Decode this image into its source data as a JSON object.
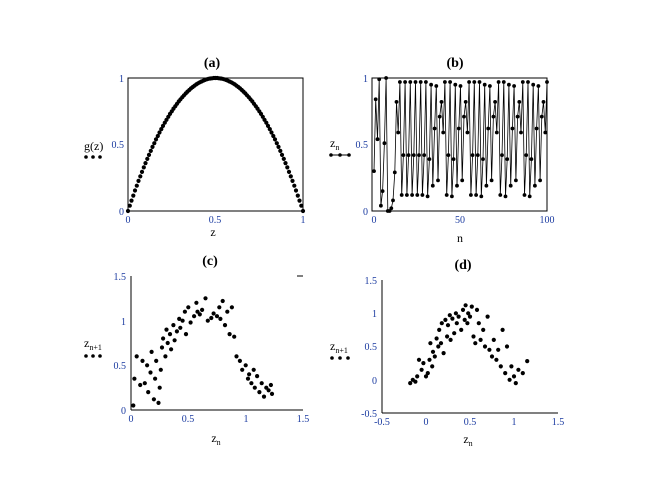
{
  "chart_data": [
    {
      "panel": "(a)",
      "type": "scatter",
      "title": "(a)",
      "xlabel": "z",
      "legend": {
        "name": "g(z)",
        "sub": ""
      },
      "xlim": [
        0,
        1
      ],
      "ylim": [
        0,
        1
      ],
      "xticks": [
        "0",
        "0.5",
        "1"
      ],
      "yticks": [
        "0",
        "0.5",
        "1"
      ],
      "grid": false,
      "connect": false,
      "points": [
        [
          0.0,
          0.0
        ],
        [
          0.01,
          0.04
        ],
        [
          0.02,
          0.078
        ],
        [
          0.03,
          0.116
        ],
        [
          0.04,
          0.154
        ],
        [
          0.05,
          0.19
        ],
        [
          0.06,
          0.226
        ],
        [
          0.07,
          0.26
        ],
        [
          0.08,
          0.294
        ],
        [
          0.09,
          0.328
        ],
        [
          0.1,
          0.36
        ],
        [
          0.11,
          0.392
        ],
        [
          0.12,
          0.422
        ],
        [
          0.13,
          0.452
        ],
        [
          0.14,
          0.482
        ],
        [
          0.15,
          0.51
        ],
        [
          0.16,
          0.538
        ],
        [
          0.17,
          0.564
        ],
        [
          0.18,
          0.59
        ],
        [
          0.19,
          0.616
        ],
        [
          0.2,
          0.64
        ],
        [
          0.21,
          0.664
        ],
        [
          0.22,
          0.686
        ],
        [
          0.23,
          0.708
        ],
        [
          0.24,
          0.73
        ],
        [
          0.25,
          0.75
        ],
        [
          0.26,
          0.77
        ],
        [
          0.27,
          0.788
        ],
        [
          0.28,
          0.806
        ],
        [
          0.29,
          0.824
        ],
        [
          0.3,
          0.84
        ],
        [
          0.31,
          0.856
        ],
        [
          0.32,
          0.87
        ],
        [
          0.33,
          0.884
        ],
        [
          0.34,
          0.898
        ],
        [
          0.35,
          0.91
        ],
        [
          0.36,
          0.922
        ],
        [
          0.37,
          0.932
        ],
        [
          0.38,
          0.942
        ],
        [
          0.39,
          0.952
        ],
        [
          0.4,
          0.96
        ],
        [
          0.41,
          0.968
        ],
        [
          0.42,
          0.974
        ],
        [
          0.43,
          0.98
        ],
        [
          0.44,
          0.986
        ],
        [
          0.45,
          0.99
        ],
        [
          0.46,
          0.994
        ],
        [
          0.47,
          0.996
        ],
        [
          0.48,
          0.998
        ],
        [
          0.49,
          1.0
        ],
        [
          0.5,
          1.0
        ],
        [
          0.51,
          1.0
        ],
        [
          0.52,
          0.998
        ],
        [
          0.53,
          0.996
        ],
        [
          0.54,
          0.994
        ],
        [
          0.55,
          0.99
        ],
        [
          0.56,
          0.986
        ],
        [
          0.57,
          0.98
        ],
        [
          0.58,
          0.974
        ],
        [
          0.59,
          0.968
        ],
        [
          0.6,
          0.96
        ],
        [
          0.61,
          0.952
        ],
        [
          0.62,
          0.942
        ],
        [
          0.63,
          0.932
        ],
        [
          0.64,
          0.922
        ],
        [
          0.65,
          0.91
        ],
        [
          0.66,
          0.898
        ],
        [
          0.67,
          0.884
        ],
        [
          0.68,
          0.87
        ],
        [
          0.69,
          0.856
        ],
        [
          0.7,
          0.84
        ],
        [
          0.71,
          0.824
        ],
        [
          0.72,
          0.806
        ],
        [
          0.73,
          0.788
        ],
        [
          0.74,
          0.77
        ],
        [
          0.75,
          0.75
        ],
        [
          0.76,
          0.73
        ],
        [
          0.77,
          0.708
        ],
        [
          0.78,
          0.686
        ],
        [
          0.79,
          0.664
        ],
        [
          0.8,
          0.64
        ],
        [
          0.81,
          0.616
        ],
        [
          0.82,
          0.59
        ],
        [
          0.83,
          0.564
        ],
        [
          0.84,
          0.538
        ],
        [
          0.85,
          0.51
        ],
        [
          0.86,
          0.482
        ],
        [
          0.87,
          0.452
        ],
        [
          0.88,
          0.422
        ],
        [
          0.89,
          0.392
        ],
        [
          0.9,
          0.36
        ],
        [
          0.91,
          0.328
        ],
        [
          0.92,
          0.294
        ],
        [
          0.93,
          0.26
        ],
        [
          0.94,
          0.226
        ],
        [
          0.95,
          0.19
        ],
        [
          0.96,
          0.154
        ],
        [
          0.97,
          0.116
        ],
        [
          0.98,
          0.078
        ],
        [
          0.99,
          0.04
        ],
        [
          1.0,
          0.0
        ]
      ]
    },
    {
      "panel": "(b)",
      "type": "line",
      "title": "(b)",
      "xlabel": "n",
      "legend": {
        "name": "z",
        "sub": "n"
      },
      "xlim": [
        0,
        100
      ],
      "ylim": [
        0,
        1
      ],
      "xticks": [
        "0",
        "50",
        "100"
      ],
      "yticks": [
        "0",
        "0.5",
        "1"
      ],
      "grid": false,
      "connect": true,
      "points": [
        [
          0,
          0.3
        ],
        [
          1,
          0.84
        ],
        [
          2,
          0.54
        ],
        [
          3,
          0.99
        ],
        [
          4,
          0.04
        ],
        [
          5,
          0.15
        ],
        [
          6,
          0.51
        ],
        [
          7,
          1.0
        ],
        [
          8,
          0.0
        ],
        [
          9,
          0.0
        ],
        [
          10,
          0.02
        ],
        [
          11,
          0.08
        ],
        [
          12,
          0.29
        ],
        [
          13,
          0.82
        ],
        [
          14,
          0.59
        ],
        [
          15,
          0.97
        ],
        [
          16,
          0.12
        ],
        [
          17,
          0.42
        ],
        [
          18,
          0.97
        ],
        [
          19,
          0.12
        ],
        [
          20,
          0.42
        ],
        [
          21,
          0.97
        ],
        [
          22,
          0.12
        ],
        [
          23,
          0.42
        ],
        [
          24,
          0.97
        ],
        [
          25,
          0.12
        ],
        [
          26,
          0.42
        ],
        [
          27,
          0.97
        ],
        [
          28,
          0.12
        ],
        [
          29,
          0.42
        ],
        [
          30,
          0.97
        ],
        [
          31,
          0.11
        ],
        [
          32,
          0.39
        ],
        [
          33,
          0.95
        ],
        [
          34,
          0.19
        ],
        [
          35,
          0.62
        ],
        [
          36,
          0.94
        ],
        [
          37,
          0.23
        ],
        [
          38,
          0.71
        ],
        [
          39,
          0.82
        ],
        [
          40,
          0.59
        ],
        [
          41,
          0.97
        ],
        [
          42,
          0.12
        ],
        [
          43,
          0.42
        ],
        [
          44,
          0.97
        ],
        [
          45,
          0.11
        ],
        [
          46,
          0.39
        ],
        [
          47,
          0.95
        ],
        [
          48,
          0.19
        ],
        [
          49,
          0.62
        ],
        [
          50,
          0.94
        ],
        [
          51,
          0.23
        ],
        [
          52,
          0.71
        ],
        [
          53,
          0.82
        ],
        [
          54,
          0.59
        ],
        [
          55,
          0.97
        ],
        [
          56,
          0.12
        ],
        [
          57,
          0.42
        ],
        [
          58,
          0.97
        ],
        [
          59,
          0.12
        ],
        [
          60,
          0.42
        ],
        [
          61,
          0.97
        ],
        [
          62,
          0.11
        ],
        [
          63,
          0.39
        ],
        [
          64,
          0.95
        ],
        [
          65,
          0.19
        ],
        [
          66,
          0.62
        ],
        [
          67,
          0.94
        ],
        [
          68,
          0.23
        ],
        [
          69,
          0.71
        ],
        [
          70,
          0.82
        ],
        [
          71,
          0.59
        ],
        [
          72,
          0.97
        ],
        [
          73,
          0.12
        ],
        [
          74,
          0.42
        ],
        [
          75,
          0.97
        ],
        [
          76,
          0.11
        ],
        [
          77,
          0.39
        ],
        [
          78,
          0.95
        ],
        [
          79,
          0.19
        ],
        [
          80,
          0.62
        ],
        [
          81,
          0.94
        ],
        [
          82,
          0.23
        ],
        [
          83,
          0.71
        ],
        [
          84,
          0.82
        ],
        [
          85,
          0.59
        ],
        [
          86,
          0.97
        ],
        [
          87,
          0.12
        ],
        [
          88,
          0.42
        ],
        [
          89,
          0.97
        ],
        [
          90,
          0.11
        ],
        [
          91,
          0.39
        ],
        [
          92,
          0.95
        ],
        [
          93,
          0.19
        ],
        [
          94,
          0.62
        ],
        [
          95,
          0.94
        ],
        [
          96,
          0.23
        ],
        [
          97,
          0.71
        ],
        [
          98,
          0.82
        ],
        [
          99,
          0.59
        ],
        [
          100,
          0.97
        ]
      ]
    },
    {
      "panel": "(c)",
      "type": "scatter",
      "title": "(c)",
      "xlabel": "z",
      "xlabel_sub": "n",
      "legend": {
        "name": "z",
        "sub": "n+1"
      },
      "xlim": [
        0,
        1.5
      ],
      "ylim": [
        0,
        1.5
      ],
      "xticks": [
        "0",
        "0.5",
        "1",
        "1.5"
      ],
      "yticks": [
        "0",
        "0.5",
        "1",
        "1.5"
      ],
      "grid": false,
      "connect": false,
      "points": [
        [
          0.02,
          0.05
        ],
        [
          0.03,
          0.35
        ],
        [
          0.05,
          0.6
        ],
        [
          0.08,
          0.28
        ],
        [
          0.1,
          0.55
        ],
        [
          0.12,
          0.3
        ],
        [
          0.14,
          0.5
        ],
        [
          0.15,
          0.2
        ],
        [
          0.17,
          0.42
        ],
        [
          0.18,
          0.65
        ],
        [
          0.2,
          0.12
        ],
        [
          0.21,
          0.35
        ],
        [
          0.22,
          0.55
        ],
        [
          0.24,
          0.08
        ],
        [
          0.25,
          0.25
        ],
        [
          0.26,
          0.45
        ],
        [
          0.27,
          0.7
        ],
        [
          0.28,
          0.8
        ],
        [
          0.3,
          0.6
        ],
        [
          0.31,
          0.9
        ],
        [
          0.32,
          0.75
        ],
        [
          0.34,
          0.85
        ],
        [
          0.35,
          0.68
        ],
        [
          0.37,
          0.95
        ],
        [
          0.38,
          0.78
        ],
        [
          0.4,
          0.88
        ],
        [
          0.42,
          1.02
        ],
        [
          0.43,
          0.92
        ],
        [
          0.45,
          1.0
        ],
        [
          0.47,
          1.1
        ],
        [
          0.48,
          0.85
        ],
        [
          0.5,
          1.15
        ],
        [
          0.52,
          0.98
        ],
        [
          0.55,
          1.05
        ],
        [
          0.57,
          1.2
        ],
        [
          0.58,
          1.1
        ],
        [
          0.6,
          1.07
        ],
        [
          0.62,
          1.12
        ],
        [
          0.65,
          1.25
        ],
        [
          0.67,
          1.0
        ],
        [
          0.7,
          1.03
        ],
        [
          0.72,
          1.08
        ],
        [
          0.75,
          1.05
        ],
        [
          0.77,
          1.15
        ],
        [
          0.78,
          1.02
        ],
        [
          0.8,
          1.22
        ],
        [
          0.82,
          0.95
        ],
        [
          0.84,
          1.1
        ],
        [
          0.86,
          0.85
        ],
        [
          0.88,
          1.15
        ],
        [
          0.9,
          0.82
        ],
        [
          0.92,
          0.6
        ],
        [
          0.95,
          0.55
        ],
        [
          0.97,
          0.45
        ],
        [
          1.0,
          0.5
        ],
        [
          1.02,
          0.35
        ],
        [
          1.03,
          0.4
        ],
        [
          1.05,
          0.3
        ],
        [
          1.07,
          0.45
        ],
        [
          1.08,
          0.25
        ],
        [
          1.1,
          0.38
        ],
        [
          1.12,
          0.2
        ],
        [
          1.14,
          0.3
        ],
        [
          1.16,
          0.15
        ],
        [
          1.18,
          0.25
        ],
        [
          1.2,
          0.22
        ],
        [
          1.22,
          0.28
        ],
        [
          1.23,
          0.18
        ]
      ]
    },
    {
      "panel": "(d)",
      "type": "scatter",
      "title": "(d)",
      "xlabel": "z",
      "xlabel_sub": "n",
      "legend": {
        "name": "z",
        "sub": "n+1"
      },
      "xlim": [
        -0.5,
        1.5
      ],
      "ylim": [
        -0.5,
        1.5
      ],
      "xticks": [
        "-0.5",
        "0",
        "0.5",
        "1",
        "1.5"
      ],
      "yticks": [
        "-0.5",
        "0",
        "0.5",
        "1",
        "1.5"
      ],
      "grid": false,
      "connect": false,
      "points": [
        [
          -0.18,
          -0.05
        ],
        [
          -0.15,
          0.0
        ],
        [
          -0.12,
          -0.03
        ],
        [
          -0.1,
          0.05
        ],
        [
          -0.08,
          0.3
        ],
        [
          -0.05,
          0.15
        ],
        [
          -0.03,
          0.25
        ],
        [
          0.0,
          0.05
        ],
        [
          0.02,
          0.1
        ],
        [
          0.04,
          0.3
        ],
        [
          0.05,
          0.55
        ],
        [
          0.07,
          0.2
        ],
        [
          0.08,
          0.42
        ],
        [
          0.1,
          0.35
        ],
        [
          0.12,
          0.62
        ],
        [
          0.14,
          0.5
        ],
        [
          0.15,
          0.75
        ],
        [
          0.17,
          0.55
        ],
        [
          0.18,
          0.85
        ],
        [
          0.2,
          0.4
        ],
        [
          0.22,
          0.9
        ],
        [
          0.24,
          0.65
        ],
        [
          0.25,
          0.82
        ],
        [
          0.27,
          0.97
        ],
        [
          0.28,
          0.6
        ],
        [
          0.3,
          0.92
        ],
        [
          0.32,
          0.7
        ],
        [
          0.34,
          1.0
        ],
        [
          0.35,
          0.85
        ],
        [
          0.37,
          0.95
        ],
        [
          0.4,
          0.75
        ],
        [
          0.42,
          1.05
        ],
        [
          0.44,
          0.9
        ],
        [
          0.45,
          1.12
        ],
        [
          0.47,
          0.85
        ],
        [
          0.48,
          1.0
        ],
        [
          0.5,
          0.95
        ],
        [
          0.52,
          1.1
        ],
        [
          0.54,
          0.65
        ],
        [
          0.56,
          0.55
        ],
        [
          0.58,
          1.05
        ],
        [
          0.6,
          0.85
        ],
        [
          0.62,
          0.6
        ],
        [
          0.65,
          0.75
        ],
        [
          0.67,
          0.5
        ],
        [
          0.7,
          0.95
        ],
        [
          0.72,
          0.45
        ],
        [
          0.75,
          0.35
        ],
        [
          0.77,
          0.6
        ],
        [
          0.8,
          0.3
        ],
        [
          0.82,
          0.45
        ],
        [
          0.85,
          0.2
        ],
        [
          0.87,
          0.75
        ],
        [
          0.9,
          0.1
        ],
        [
          0.92,
          0.5
        ],
        [
          0.95,
          0.0
        ],
        [
          0.97,
          0.2
        ],
        [
          1.0,
          0.05
        ],
        [
          1.02,
          -0.05
        ],
        [
          1.05,
          0.15
        ],
        [
          1.1,
          0.1
        ],
        [
          1.15,
          0.28
        ]
      ]
    }
  ]
}
